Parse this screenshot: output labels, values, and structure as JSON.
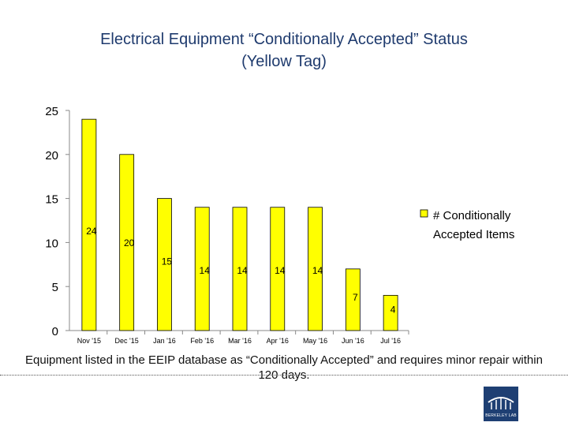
{
  "chart_data": {
    "type": "bar",
    "title": "Electrical Equipment “Conditionally Accepted” Status",
    "subtitle": "(Yellow Tag)",
    "categories": [
      "Nov '15",
      "Dec '15",
      "Jan '16",
      "Feb '16",
      "Mar '16",
      "Apr '16",
      "May '16",
      "Jun '16",
      "Jul '16"
    ],
    "series": [
      {
        "name": "# Conditionally Accepted Items",
        "values": [
          24,
          20,
          15,
          14,
          14,
          14,
          14,
          7,
          4
        ]
      }
    ],
    "ylim": [
      0,
      25
    ],
    "yticks": [
      0,
      5,
      10,
      15,
      20,
      25
    ],
    "ytick_labels": [
      "0",
      "5",
      "10",
      "15",
      "20",
      "25"
    ],
    "xlabel": "",
    "ylabel": "",
    "grid": false,
    "legend_position": "right",
    "bar_color": "#ffff00",
    "bar_stroke": "#000000"
  },
  "caption": "Equipment listed in the EEIP database as “Conditionally Accepted” and requires minor repair within 120 days.",
  "logo": {
    "text": "BERKELEY LAB",
    "color": "#1e3f73"
  }
}
